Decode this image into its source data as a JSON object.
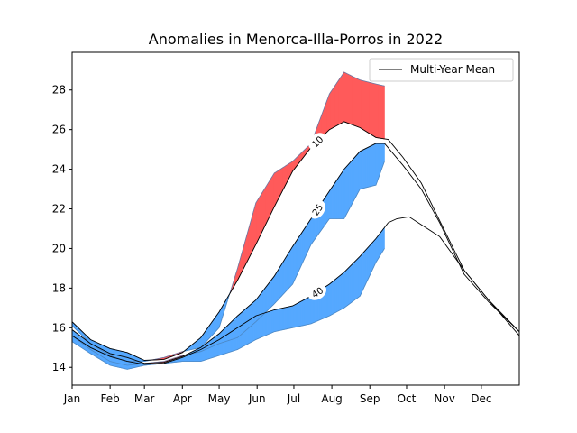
{
  "chart_data": {
    "type": "area",
    "title": "Anomalies in Menorca-Illa-Porros in 2022",
    "xlabel": "",
    "ylabel": "",
    "x_tick_labels": [
      "Jan",
      "Feb",
      "Mar",
      "Apr",
      "May",
      "Jun",
      "Jul",
      "Aug",
      "Sep",
      "Oct",
      "Nov",
      "Dec"
    ],
    "xlim": [
      0,
      365
    ],
    "ylim": [
      13.1,
      29.9
    ],
    "y_ticks": [
      14,
      16,
      18,
      20,
      22,
      24,
      26,
      28
    ],
    "y_tick_labels": [
      "14",
      "16",
      "18",
      "20",
      "22",
      "24",
      "26",
      "28"
    ],
    "grid": false,
    "legend": {
      "position": "top-right",
      "entries": [
        {
          "label": "Multi-Year Mean",
          "color": "#000000"
        }
      ]
    },
    "colors": {
      "above": "#ff5a5a",
      "below": "#55a8ff",
      "observed_line": "#4a7fb5",
      "mean_line": "#000000"
    },
    "profiles": [
      {
        "name": "10",
        "contour_label": "10",
        "label_day": 200,
        "mean": [
          [
            0,
            16.3
          ],
          [
            15,
            15.4
          ],
          [
            31,
            14.95
          ],
          [
            45,
            14.75
          ],
          [
            59,
            14.35
          ],
          [
            75,
            14.4
          ],
          [
            90,
            14.75
          ],
          [
            105,
            15.5
          ],
          [
            120,
            16.8
          ],
          [
            135,
            18.4
          ],
          [
            150,
            20.2
          ],
          [
            165,
            22.1
          ],
          [
            180,
            23.9
          ],
          [
            195,
            25.1
          ],
          [
            210,
            26.0
          ],
          [
            222,
            26.4
          ],
          [
            235,
            26.1
          ],
          [
            248,
            25.6
          ],
          [
            258,
            25.5
          ],
          [
            270,
            24.6
          ],
          [
            285,
            23.3
          ],
          [
            300,
            21.4
          ],
          [
            320,
            18.9
          ],
          [
            340,
            17.4
          ],
          [
            365,
            15.8
          ]
        ],
        "observed": [
          [
            0,
            16.1
          ],
          [
            15,
            15.2
          ],
          [
            31,
            14.6
          ],
          [
            45,
            14.3
          ],
          [
            59,
            14.3
          ],
          [
            75,
            14.5
          ],
          [
            90,
            14.8
          ],
          [
            105,
            15.0
          ],
          [
            120,
            16.0
          ],
          [
            135,
            19.0
          ],
          [
            150,
            22.3
          ],
          [
            165,
            23.8
          ],
          [
            180,
            24.4
          ],
          [
            195,
            25.3
          ],
          [
            210,
            27.8
          ],
          [
            222,
            28.9
          ],
          [
            235,
            28.5
          ],
          [
            248,
            28.3
          ],
          [
            255,
            28.2
          ]
        ]
      },
      {
        "name": "25",
        "contour_label": "25",
        "label_day": 200,
        "mean": [
          [
            0,
            15.9
          ],
          [
            15,
            15.2
          ],
          [
            31,
            14.7
          ],
          [
            45,
            14.5
          ],
          [
            59,
            14.2
          ],
          [
            75,
            14.25
          ],
          [
            90,
            14.55
          ],
          [
            105,
            15.0
          ],
          [
            120,
            15.7
          ],
          [
            135,
            16.6
          ],
          [
            150,
            17.4
          ],
          [
            165,
            18.6
          ],
          [
            180,
            20.1
          ],
          [
            195,
            21.5
          ],
          [
            210,
            22.9
          ],
          [
            222,
            24.0
          ],
          [
            235,
            24.9
          ],
          [
            248,
            25.3
          ],
          [
            255,
            25.3
          ],
          [
            270,
            24.2
          ],
          [
            285,
            23.0
          ],
          [
            300,
            21.3
          ],
          [
            320,
            18.7
          ],
          [
            340,
            17.3
          ],
          [
            365,
            15.8
          ]
        ],
        "observed": [
          [
            0,
            15.6
          ],
          [
            15,
            14.9
          ],
          [
            31,
            14.3
          ],
          [
            45,
            14.1
          ],
          [
            59,
            14.2
          ],
          [
            75,
            14.3
          ],
          [
            90,
            14.6
          ],
          [
            105,
            14.8
          ],
          [
            120,
            15.2
          ],
          [
            135,
            15.5
          ],
          [
            150,
            16.3
          ],
          [
            165,
            17.2
          ],
          [
            180,
            18.2
          ],
          [
            195,
            20.2
          ],
          [
            210,
            21.5
          ],
          [
            222,
            21.5
          ],
          [
            235,
            23.0
          ],
          [
            248,
            23.2
          ],
          [
            255,
            24.4
          ]
        ]
      },
      {
        "name": "40",
        "contour_label": "40",
        "label_day": 200,
        "mean": [
          [
            0,
            15.6
          ],
          [
            15,
            15.0
          ],
          [
            31,
            14.55
          ],
          [
            45,
            14.3
          ],
          [
            59,
            14.15
          ],
          [
            75,
            14.2
          ],
          [
            90,
            14.5
          ],
          [
            105,
            14.9
          ],
          [
            120,
            15.4
          ],
          [
            135,
            16.0
          ],
          [
            150,
            16.6
          ],
          [
            165,
            16.9
          ],
          [
            180,
            17.1
          ],
          [
            195,
            17.6
          ],
          [
            210,
            18.2
          ],
          [
            222,
            18.8
          ],
          [
            235,
            19.6
          ],
          [
            248,
            20.5
          ],
          [
            258,
            21.3
          ],
          [
            265,
            21.5
          ],
          [
            275,
            21.6
          ],
          [
            285,
            21.2
          ],
          [
            300,
            20.6
          ],
          [
            320,
            18.9
          ],
          [
            340,
            17.4
          ],
          [
            365,
            15.6
          ]
        ],
        "observed": [
          [
            0,
            15.3
          ],
          [
            15,
            14.7
          ],
          [
            31,
            14.1
          ],
          [
            45,
            13.9
          ],
          [
            59,
            14.1
          ],
          [
            75,
            14.2
          ],
          [
            90,
            14.3
          ],
          [
            105,
            14.3
          ],
          [
            120,
            14.6
          ],
          [
            135,
            14.9
          ],
          [
            150,
            15.4
          ],
          [
            165,
            15.8
          ],
          [
            180,
            16.0
          ],
          [
            195,
            16.2
          ],
          [
            210,
            16.6
          ],
          [
            222,
            17.0
          ],
          [
            235,
            17.6
          ],
          [
            248,
            19.3
          ],
          [
            255,
            20.0
          ]
        ]
      }
    ]
  }
}
